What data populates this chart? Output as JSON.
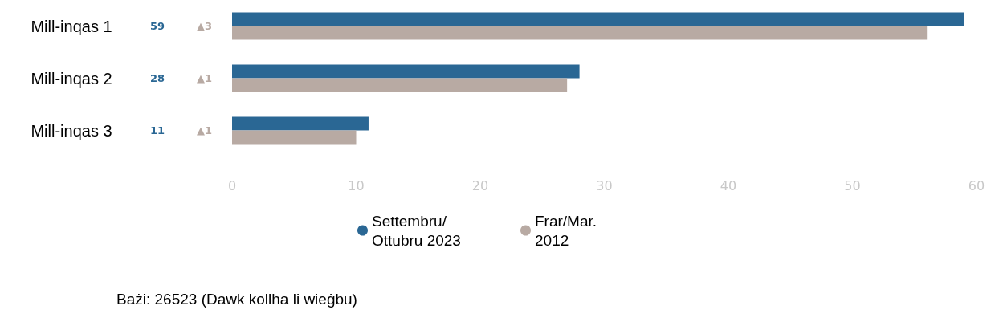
{
  "chart_data": {
    "type": "bar",
    "orientation": "horizontal",
    "categories": [
      "Mill-inqas 1",
      "Mill-inqas 2",
      "Mill-inqas 3"
    ],
    "series": [
      {
        "name": "Settembru/ Ottubru 2023",
        "color": "#2a6794",
        "values": [
          59,
          28,
          11
        ],
        "value_labels": [
          "59",
          "28",
          "11"
        ]
      },
      {
        "name": "Frar/Mar. 2012",
        "color": "#b8aaa3",
        "values": [
          56,
          27,
          10
        ]
      }
    ],
    "xlim": [
      0,
      60
    ],
    "xticks": [
      0,
      10,
      20,
      30,
      40,
      50,
      60
    ],
    "grid": false,
    "legend": "bottom",
    "marker": "circle",
    "annotations": [
      "▲3",
      "▲1",
      "▲1",
      "Bażi: 26523 (Dawk kollha li wieġbu)"
    ]
  }
}
